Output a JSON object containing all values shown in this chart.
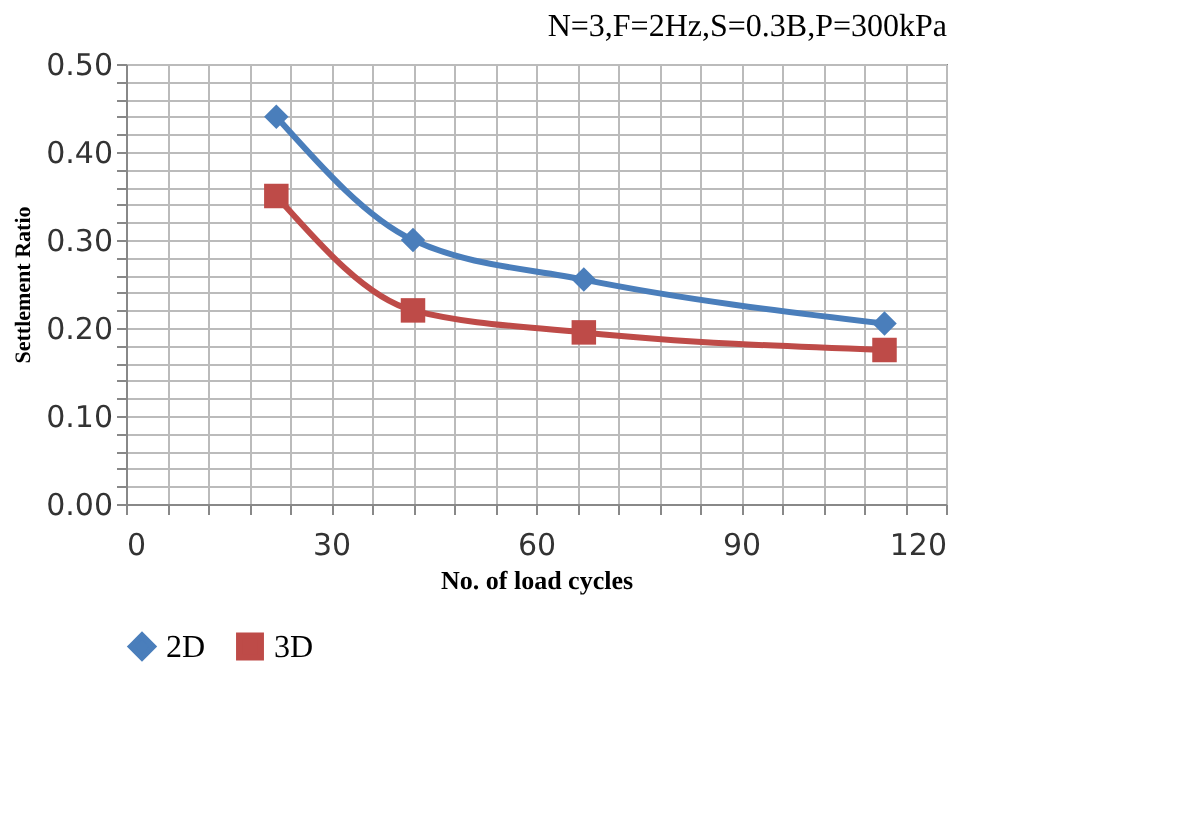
{
  "chart_data": {
    "type": "line",
    "title": "N=3,F=2Hz,S=0.3B,P=300kPa",
    "xlabel": "No. of load cycles",
    "ylabel": "Settlement Ratio",
    "series": [
      {
        "name": "2D",
        "color": "#4a7ebb",
        "marker": "diamond",
        "x": [
          22,
          42,
          67,
          111
        ],
        "values": [
          0.44,
          0.3,
          0.255,
          0.205
        ]
      },
      {
        "name": "3D",
        "color": "#be4b48",
        "marker": "square",
        "x": [
          22,
          42,
          67,
          111
        ],
        "values": [
          0.35,
          0.22,
          0.195,
          0.175
        ]
      }
    ],
    "xlim": [
      0,
      120
    ],
    "ylim": [
      0,
      0.5
    ],
    "xticks": [
      0,
      {
        "value": 6,
        "label": null
      },
      {
        "value": 12,
        "label": null
      },
      {
        "value": 18,
        "label": null
      },
      {
        "value": 24,
        "label": null
      },
      30,
      {
        "value": 36,
        "label": null
      },
      {
        "value": 42,
        "label": null
      },
      {
        "value": 48,
        "label": null
      },
      {
        "value": 54,
        "label": null
      },
      60,
      {
        "value": 66,
        "label": null
      },
      {
        "value": 72,
        "label": null
      },
      {
        "value": 78,
        "label": null
      },
      {
        "value": 84,
        "label": null
      },
      90,
      {
        "value": 96,
        "label": null
      },
      {
        "value": 102,
        "label": null
      },
      {
        "value": 108,
        "label": null
      },
      {
        "value": 114,
        "label": null
      },
      120
    ],
    "yticks": [
      {
        "value": 0,
        "label": "0.00"
      },
      {
        "value": 0.02,
        "label": null
      },
      {
        "value": 0.04,
        "label": null
      },
      {
        "value": 0.06,
        "label": null
      },
      {
        "value": 0.08,
        "label": null
      },
      {
        "value": 0.1,
        "label": "0.10"
      },
      {
        "value": 0.12,
        "label": null
      },
      {
        "value": 0.14,
        "label": null
      },
      {
        "value": 0.16,
        "label": null
      },
      {
        "value": 0.18,
        "label": null
      },
      {
        "value": 0.2,
        "label": "0.20"
      },
      {
        "value": 0.22,
        "label": null
      },
      {
        "value": 0.24,
        "label": null
      },
      {
        "value": 0.26,
        "label": null
      },
      {
        "value": 0.28,
        "label": null
      },
      {
        "value": 0.3,
        "label": "0.30"
      },
      {
        "value": 0.32,
        "label": null
      },
      {
        "value": 0.34,
        "label": null
      },
      {
        "value": 0.36,
        "label": null
      },
      {
        "value": 0.38,
        "label": null
      },
      {
        "value": 0.4,
        "label": "0.40"
      },
      {
        "value": 0.42,
        "label": null
      },
      {
        "value": 0.44,
        "label": null
      },
      {
        "value": 0.46,
        "label": null
      },
      {
        "value": 0.48,
        "label": null
      },
      {
        "value": 0.5,
        "label": "0.50"
      }
    ],
    "grid": true,
    "legend": "bottom",
    "line_style": "solid"
  }
}
